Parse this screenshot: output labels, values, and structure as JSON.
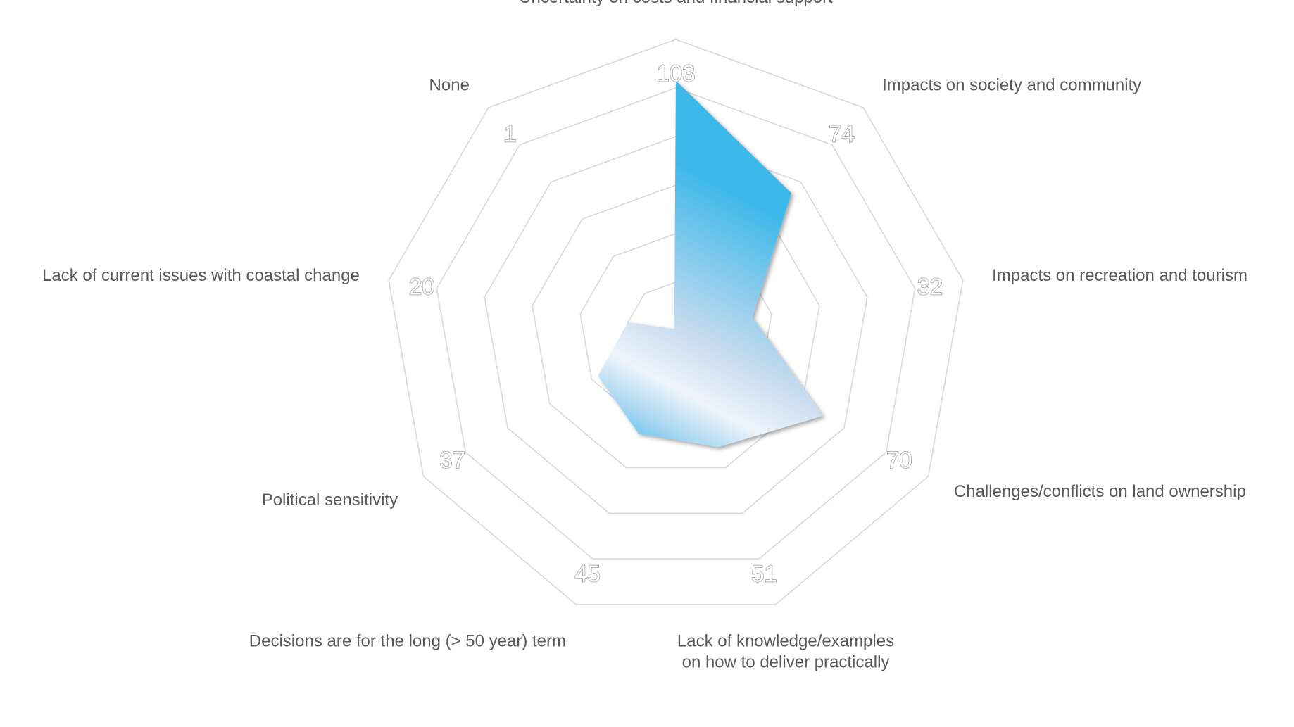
{
  "chart_data": {
    "type": "radar",
    "title": "",
    "categories": [
      "Uncertainty on costs and financial support",
      "Impacts on society and community",
      "Impacts on recreation and tourism",
      "Challenges/conflicts on land ownership",
      "Lack of knowledge/examples on how to deliver practically",
      "Decisions are for the long (> 50 year) term",
      "Political sensitivity",
      "Lack of current issues with coastal change",
      "None"
    ],
    "values": [
      103,
      74,
      32,
      70,
      51,
      45,
      37,
      20,
      1
    ],
    "value_labels": [
      "103",
      "74",
      "32",
      "70",
      "51",
      "45",
      "37",
      "20",
      "1"
    ],
    "rlim": [
      0,
      120
    ],
    "grid_rings": 6,
    "grid": true,
    "legend": "none",
    "colors": {
      "fill_top": "#3cb8ea",
      "fill_mid": "#c9dcef",
      "fill_highlight": "#eef4fb",
      "fill_bottom": "#5fc4ef",
      "grid": "#d9d9d9",
      "label_text": "#595959",
      "value_text": "#ffffff",
      "value_outline": "#9a9a9a"
    }
  }
}
